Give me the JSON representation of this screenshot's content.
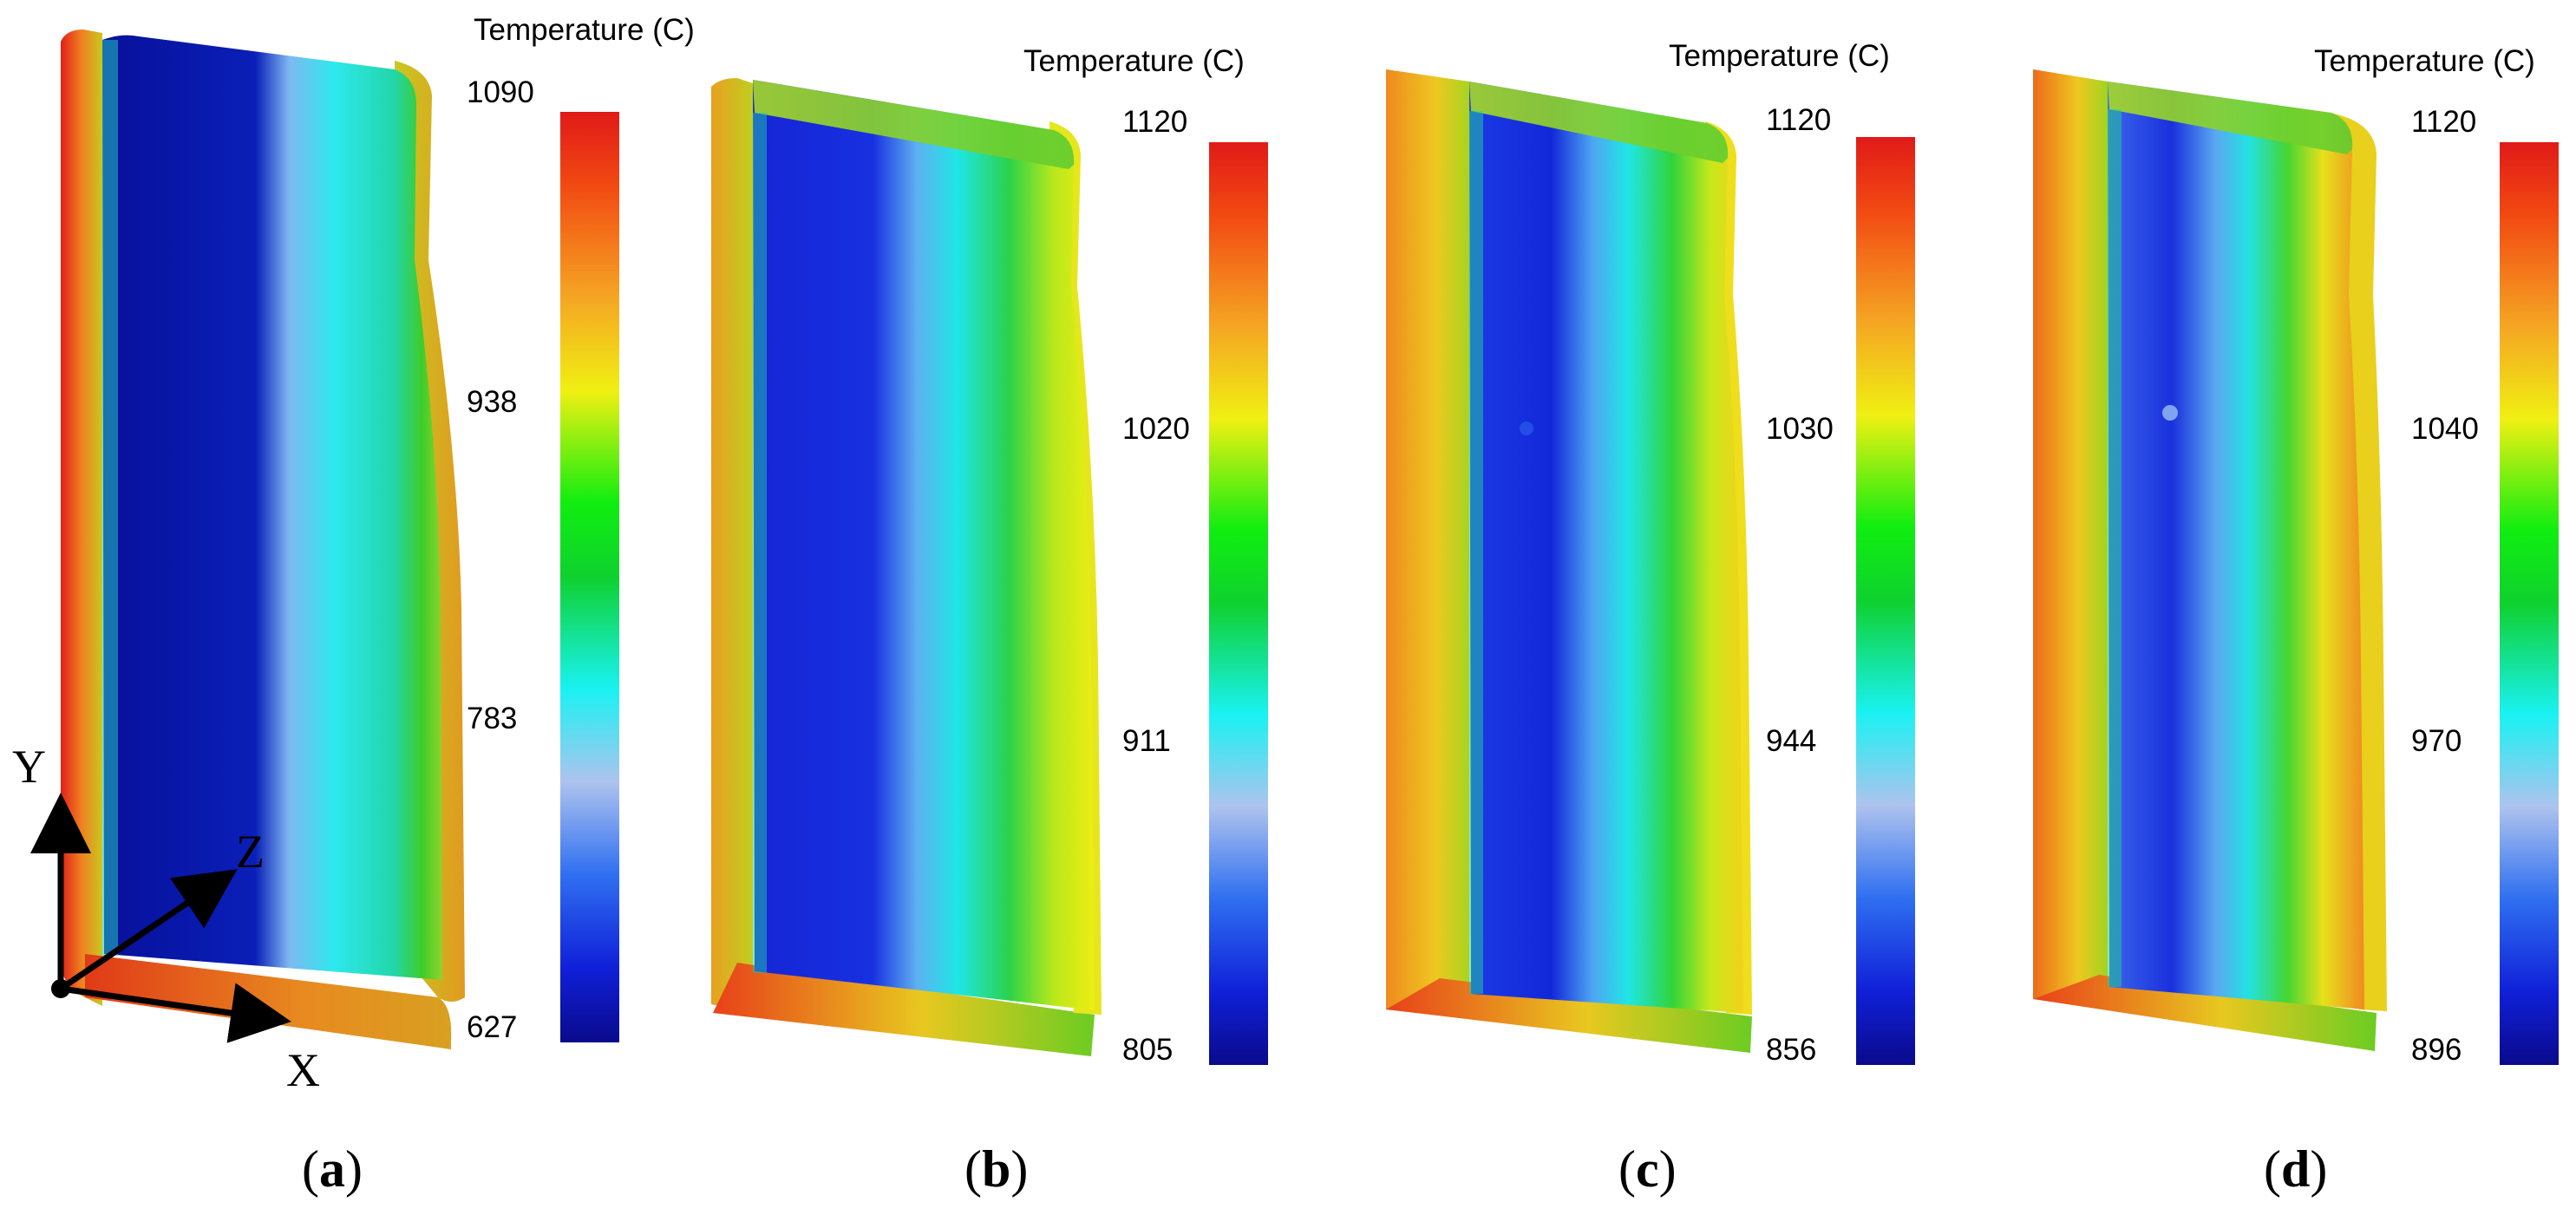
{
  "panels": [
    {
      "id": "a",
      "colorbar_title": "Temperature (C)",
      "ticks": [
        "1090",
        "938",
        "783",
        "627"
      ],
      "caption_letter": "a"
    },
    {
      "id": "b",
      "colorbar_title": "Temperature (C)",
      "ticks": [
        "1120",
        "1020",
        "911",
        "805"
      ],
      "caption_letter": "b"
    },
    {
      "id": "c",
      "colorbar_title": "Temperature (C)",
      "ticks": [
        "1120",
        "1030",
        "944",
        "856"
      ],
      "caption_letter": "c"
    },
    {
      "id": "d",
      "colorbar_title": "Temperature (C)",
      "ticks": [
        "1120",
        "1040",
        "970",
        "896"
      ],
      "caption_letter": "d"
    }
  ],
  "axes_triad": {
    "x_label": "X",
    "y_label": "Y",
    "z_label": "Z"
  },
  "colormap": [
    "#0a0a8c",
    "#1020d8",
    "#2f6ff0",
    "#aec3ee",
    "#19f2f2",
    "#0fd12f",
    "#10ee10",
    "#f0f012",
    "#f5a623",
    "#f24a12",
    "#e01a18"
  ]
}
